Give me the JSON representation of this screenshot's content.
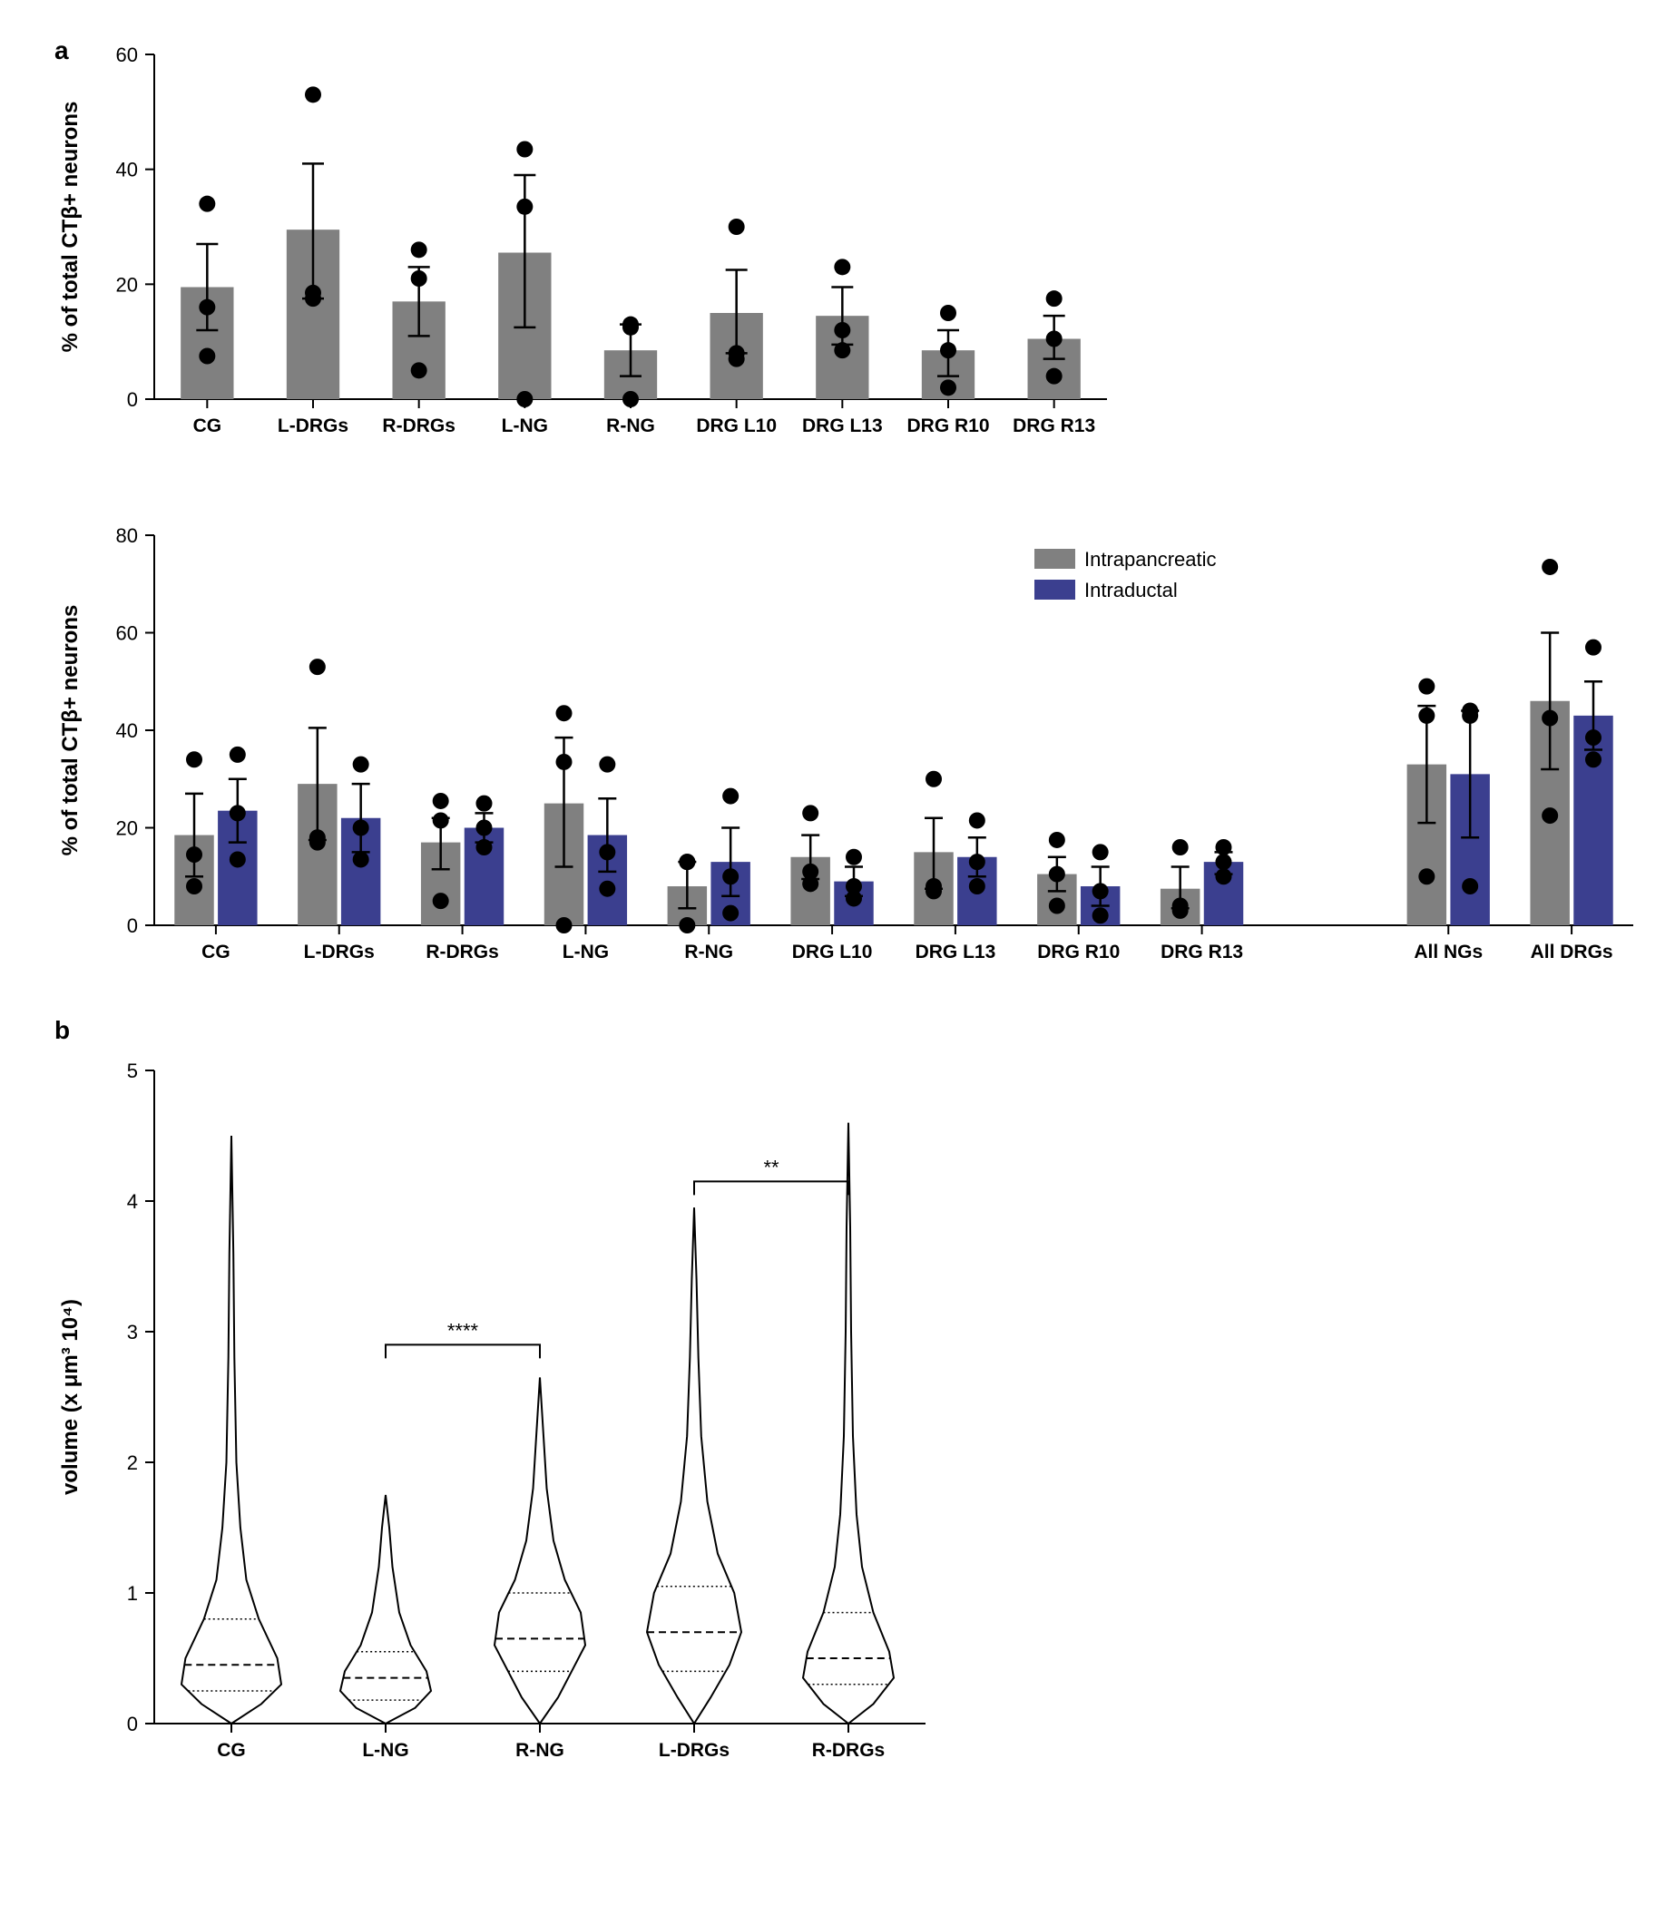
{
  "panelA": {
    "label": "a",
    "chart1": {
      "type": "bar",
      "ylabel": "% of total CTβ+ neurons",
      "ylim": [
        0,
        60
      ],
      "ytick_step": 20,
      "categories": [
        "CG",
        "L-DRGs",
        "R-DRGs",
        "L-NG",
        "R-NG",
        "DRG L10",
        "DRG L13",
        "DRG R10",
        "DRG R13"
      ],
      "bars": [
        19.5,
        29.5,
        17,
        25.5,
        8.5,
        15,
        14.5,
        8.5,
        10.5
      ],
      "err_up": [
        27,
        41,
        23,
        39,
        13,
        22.5,
        19.5,
        12,
        14.5
      ],
      "err_dn": [
        12,
        17.5,
        11,
        12.5,
        4,
        8,
        9.5,
        4,
        7
      ],
      "points": [
        [
          34,
          16,
          7.5
        ],
        [
          53,
          17.5,
          18.5
        ],
        [
          26,
          21,
          5
        ],
        [
          43.5,
          33.5,
          0
        ],
        [
          13,
          12.5,
          0
        ],
        [
          30,
          8,
          7
        ],
        [
          23,
          12,
          8.5
        ],
        [
          15,
          8.5,
          2
        ],
        [
          17.5,
          10.5,
          4
        ]
      ],
      "bar_color": "#808080",
      "background_color": "#ffffff"
    },
    "chart2": {
      "type": "grouped-bar",
      "ylabel": "% of total CTβ+ neurons",
      "ylim": [
        0,
        80
      ],
      "ytick_step": 20,
      "legend": {
        "items": [
          {
            "label": "Intrapancreatic",
            "color": "#808080"
          },
          {
            "label": "Intraductal",
            "color": "#3b3f8f"
          }
        ]
      },
      "group1_categories": [
        "CG",
        "L-DRGs",
        "R-DRGs",
        "L-NG",
        "R-NG",
        "DRG L10",
        "DRG L13",
        "DRG R10",
        "DRG R13"
      ],
      "group2_categories": [
        "All NGs",
        "All DRGs"
      ],
      "bars_ip": [
        18.5,
        29,
        17,
        25,
        8,
        14,
        15,
        10.5,
        7.5,
        33,
        46
      ],
      "bars_id": [
        23.5,
        22,
        20,
        18.5,
        13,
        9,
        14,
        8,
        13,
        31,
        43
      ],
      "err_ip_up": [
        27,
        40.5,
        22,
        38.5,
        13,
        18.5,
        22,
        14,
        12,
        45,
        60
      ],
      "err_ip_dn": [
        10,
        17.5,
        11.5,
        12,
        3.5,
        9.5,
        7.5,
        7,
        3.5,
        21,
        32
      ],
      "err_id_up": [
        30,
        29,
        23,
        26,
        20,
        12,
        18,
        12,
        15,
        44,
        50
      ],
      "err_id_dn": [
        17,
        15,
        17,
        11,
        6,
        6,
        10,
        4,
        10.5,
        18,
        36
      ],
      "points_ip": [
        [
          34,
          14.5,
          8
        ],
        [
          53,
          18,
          17
        ],
        [
          25.5,
          21.5,
          5
        ],
        [
          43.5,
          33.5,
          0
        ],
        [
          13,
          13,
          0
        ],
        [
          23,
          11,
          8.5
        ],
        [
          30,
          8,
          7
        ],
        [
          17.5,
          10.5,
          4
        ],
        [
          16,
          4,
          3
        ],
        [
          49,
          43,
          10
        ],
        [
          73.5,
          42.5,
          22.5
        ]
      ],
      "points_id": [
        [
          35,
          23,
          13.5
        ],
        [
          33,
          20,
          13.5
        ],
        [
          25,
          20,
          16
        ],
        [
          33,
          15,
          7.5
        ],
        [
          26.5,
          10,
          2.5
        ],
        [
          14,
          8,
          5.5
        ],
        [
          21.5,
          13,
          8
        ],
        [
          15,
          7,
          2
        ],
        [
          16,
          13,
          10
        ],
        [
          44,
          43,
          8
        ],
        [
          57,
          38.5,
          34
        ]
      ]
    }
  },
  "panelB": {
    "label": "b",
    "chart": {
      "type": "violin",
      "ylabel": "volume (x μm³ 10⁴)",
      "ylim": [
        0,
        5
      ],
      "ytick_step": 1,
      "categories": [
        "CG",
        "L-NG",
        "R-NG",
        "L-DRGs",
        "R-DRGs"
      ],
      "medians": [
        0.45,
        0.35,
        0.65,
        0.7,
        0.5
      ],
      "q1": [
        0.25,
        0.18,
        0.4,
        0.4,
        0.3
      ],
      "q3": [
        0.8,
        0.55,
        1.0,
        1.05,
        0.85
      ],
      "sig": [
        {
          "from": 1,
          "to": 2,
          "y": 2.9,
          "label": "****"
        },
        {
          "from": 3,
          "to": 4,
          "y": 4.15,
          "label": "**"
        }
      ]
    }
  }
}
